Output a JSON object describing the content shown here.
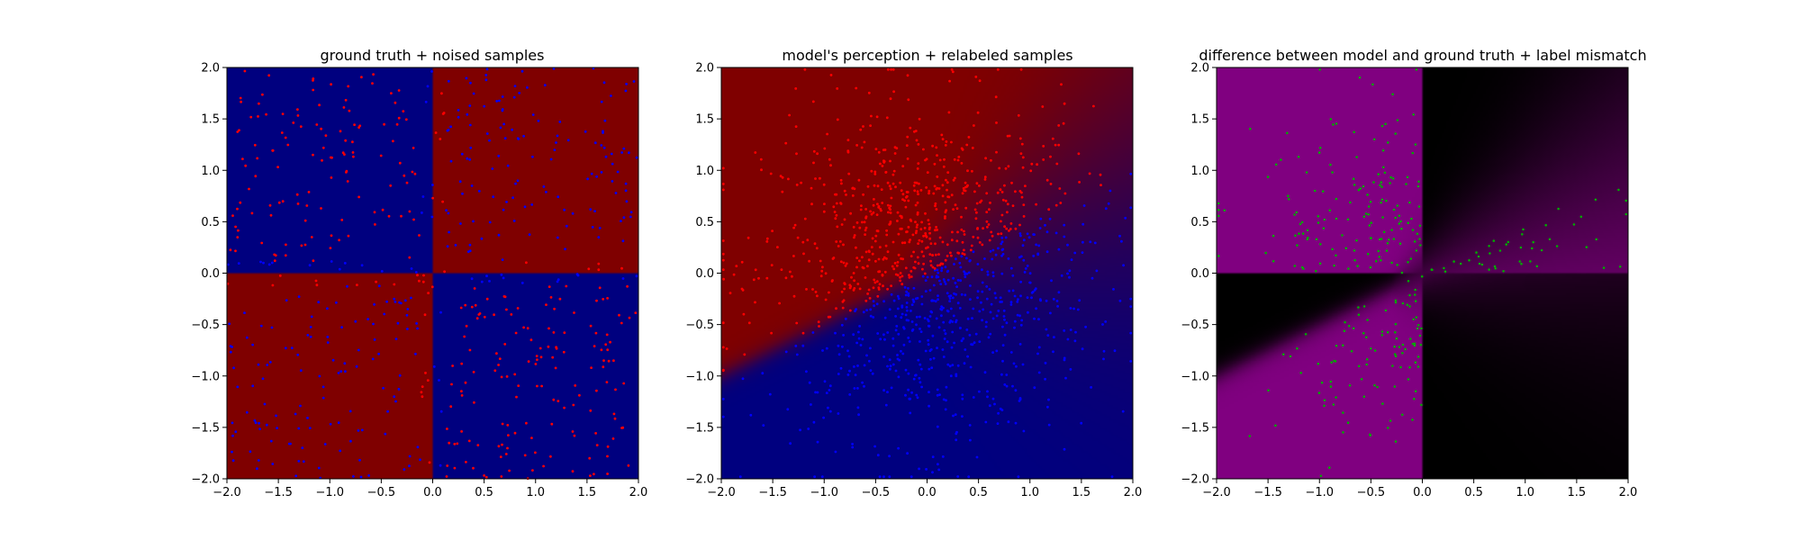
{
  "chart_data": [
    {
      "type": "heatmap",
      "title": "ground truth + noised samples",
      "xlabel": "",
      "ylabel": "",
      "xlim": [
        -2.0,
        2.0
      ],
      "ylim": [
        -2.0,
        2.0
      ],
      "xticks": [
        "−2.0",
        "−1.5",
        "−1.0",
        "−0.5",
        "0.0",
        "0.5",
        "1.0",
        "1.5",
        "2.0"
      ],
      "yticks": [
        "−2.0",
        "−1.5",
        "−1.0",
        "−0.5",
        "0.0",
        "0.5",
        "1.0",
        "1.5",
        "2.0"
      ],
      "background": "quadrants: x*y > 0 red, x*y < 0 blue",
      "point_count": 600,
      "colors": {
        "red_region": "#7f0000",
        "blue_region": "#00007f",
        "red_point": "#ff0000",
        "blue_point": "#0000ff"
      },
      "grid": false
    },
    {
      "type": "heatmap",
      "title": "model's perception + relabeled samples",
      "xlabel": "",
      "ylabel": "",
      "xlim": [
        -2.0,
        2.0
      ],
      "ylim": [
        -2.0,
        2.0
      ],
      "xticks": [
        "−2.0",
        "−1.5",
        "−1.0",
        "−0.5",
        "0.0",
        "0.5",
        "1.0",
        "1.5",
        "2.0"
      ],
      "yticks": [
        "−2.0",
        "−1.5",
        "−1.0",
        "−0.5",
        "0.0",
        "0.5",
        "1.0",
        "1.5",
        "2.0"
      ],
      "background": "soft linear boundary y = 0.5x, red above, blue below, boundary widens to the right",
      "point_count": 1200,
      "colors": {
        "red_region": "#7f0000",
        "blue_region": "#00007f",
        "red_point": "#ff0000",
        "blue_point": "#0000ff"
      },
      "grid": false
    },
    {
      "type": "heatmap",
      "title": "difference between model and ground truth + label mismatch",
      "xlabel": "",
      "ylabel": "",
      "xlim": [
        -2.0,
        2.0
      ],
      "ylim": [
        -2.0,
        2.0
      ],
      "xticks": [
        "−2.0",
        "−1.5",
        "−1.0",
        "−0.5",
        "0.0",
        "0.5",
        "1.0",
        "1.5",
        "2.0"
      ],
      "yticks": [
        "−2.0",
        "−1.5",
        "−1.0",
        "−0.5",
        "0.0",
        "0.5",
        "1.0",
        "1.5",
        "2.0"
      ],
      "background": "absolute difference: purple where model disagrees with ground truth, black where it agrees",
      "point_count": 300,
      "colors": {
        "mismatch_region": "#800080",
        "match_region": "#000000",
        "mismatch_point": "#00aa00"
      },
      "grid": false
    }
  ]
}
